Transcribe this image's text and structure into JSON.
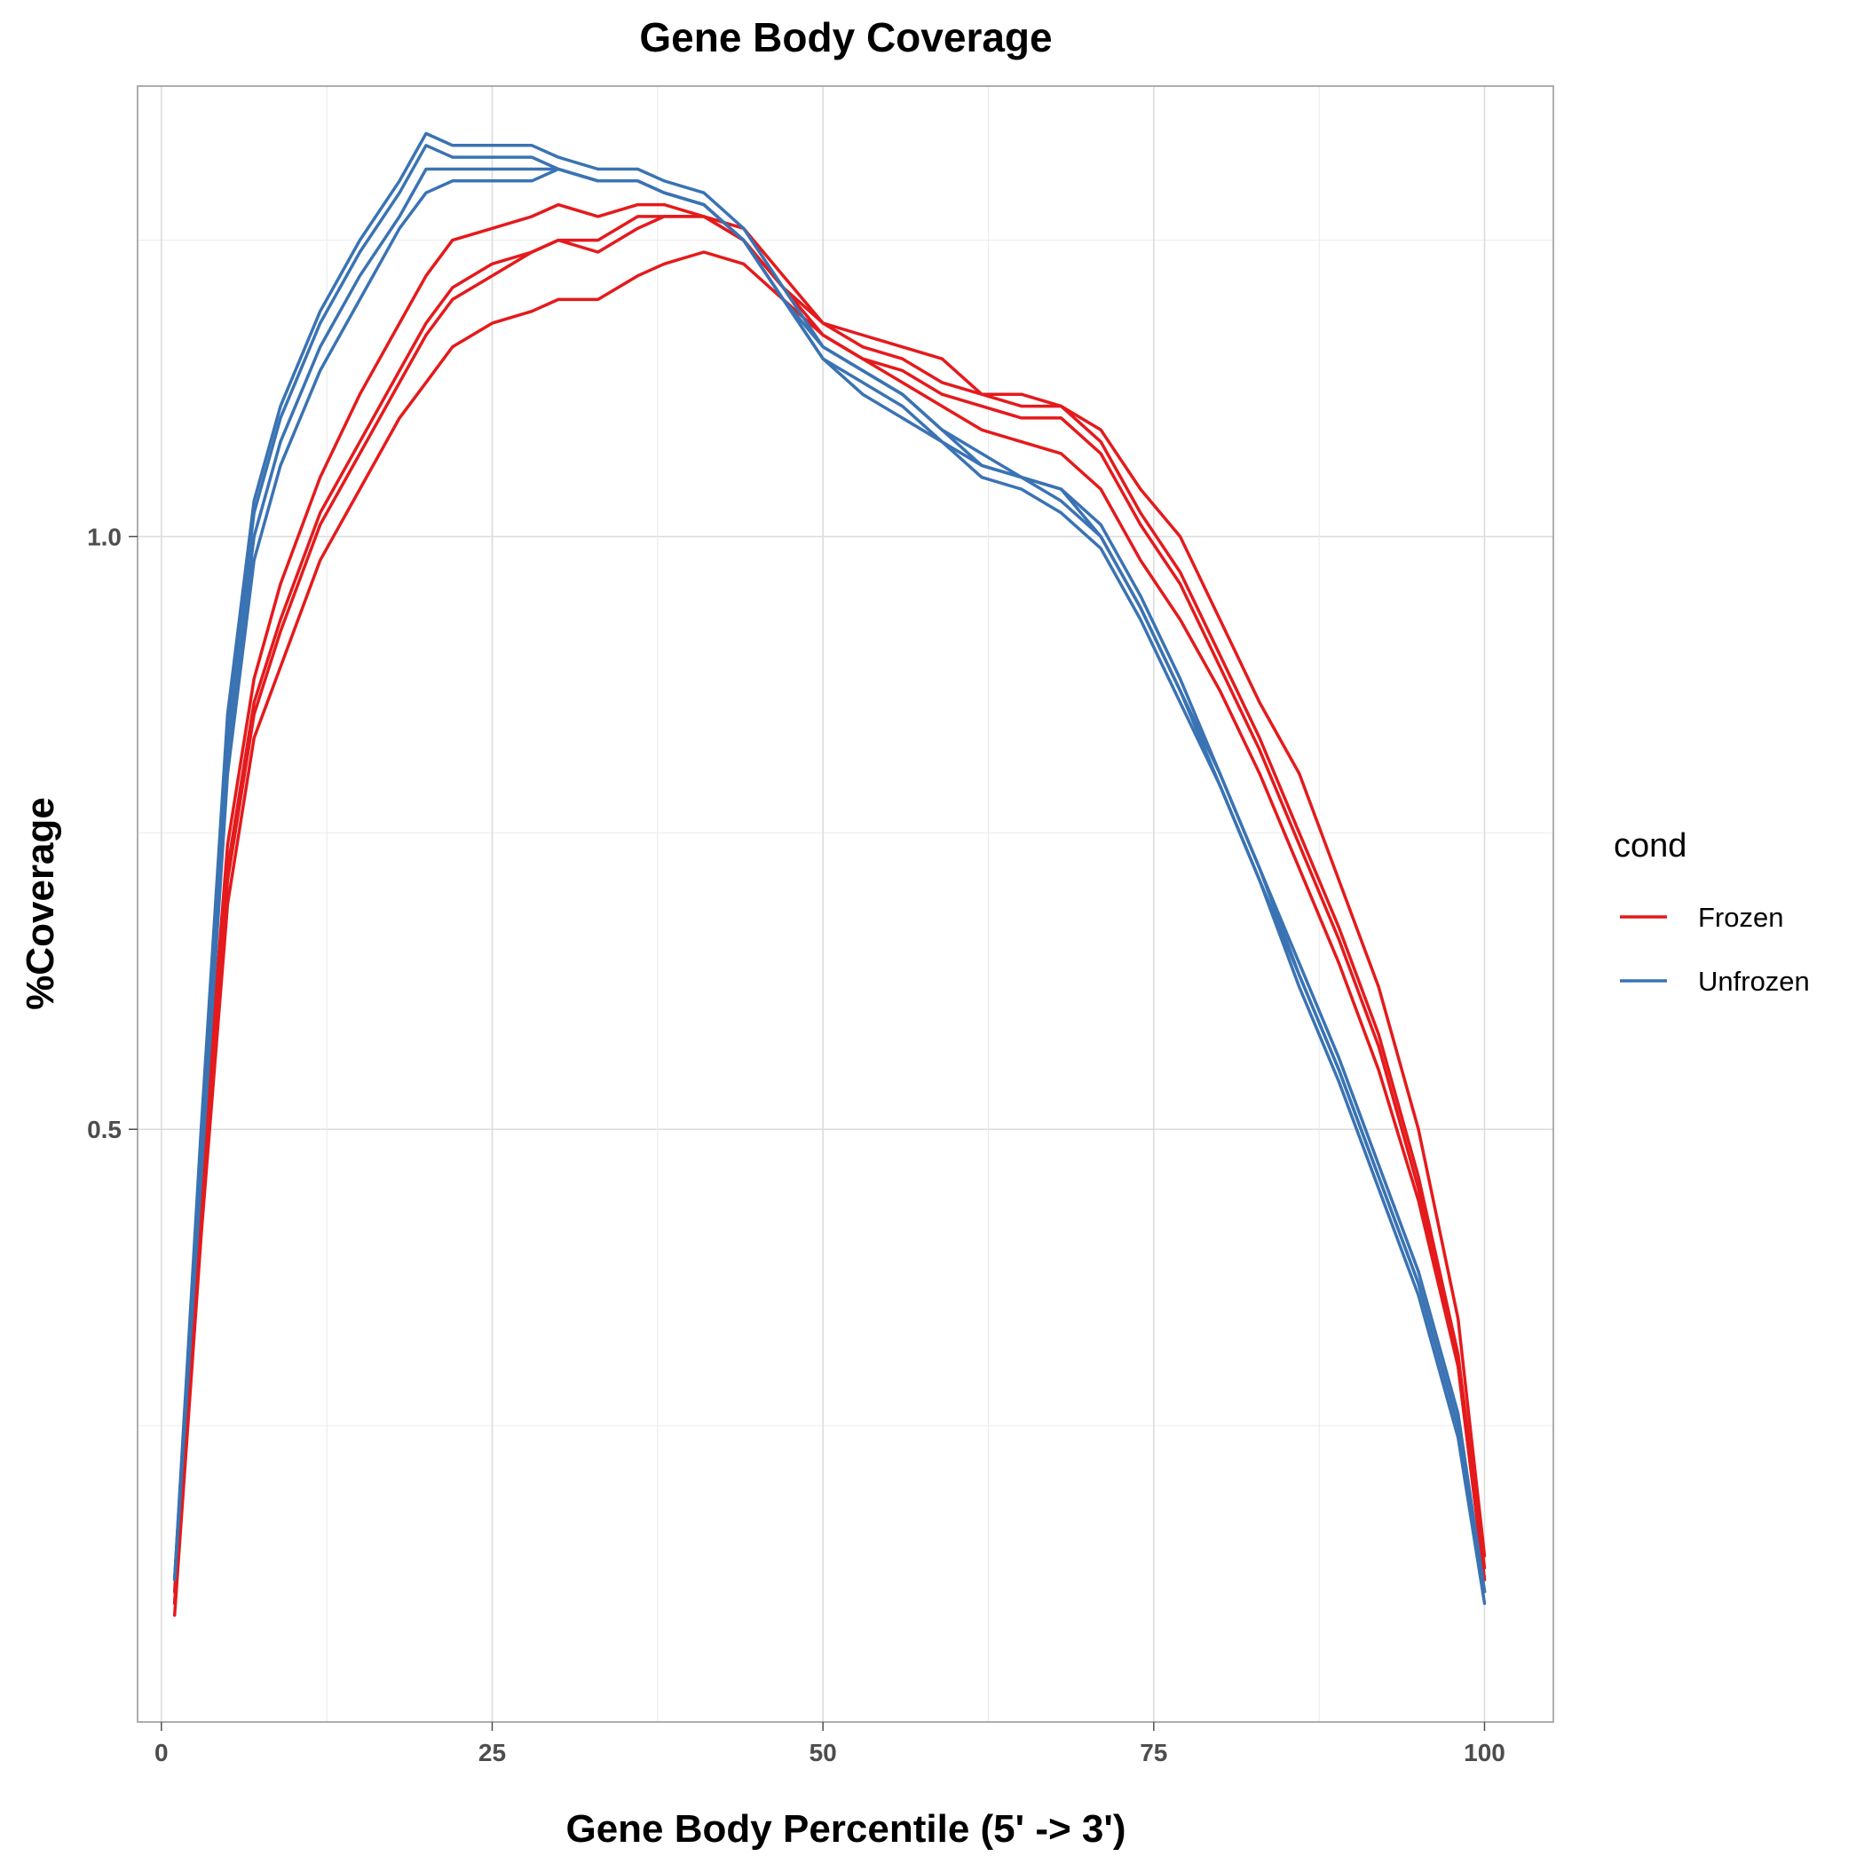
{
  "chart_data": {
    "type": "line",
    "title": "Gene Body Coverage",
    "xlabel": "Gene Body Percentile (5' -> 3')",
    "ylabel": "%Coverage",
    "xlim": [
      -1.8,
      105.2
    ],
    "ylim": [
      0.0,
      1.38
    ],
    "x_ticks": [
      0,
      25,
      50,
      75,
      100
    ],
    "x_tick_labels": [
      "0",
      "25",
      "50",
      "75",
      "100"
    ],
    "y_ticks": [
      0.5,
      1.0
    ],
    "y_tick_labels": [
      "0.5",
      "1.0"
    ],
    "y_minor_ticks": [
      0.25,
      0.75,
      1.25
    ],
    "grid": true,
    "legend": {
      "title": "cond",
      "position": "right",
      "entries": [
        {
          "label": "Frozen",
          "color": "#e41a1c"
        },
        {
          "label": "Unfrozen",
          "color": "#3a73b3"
        }
      ]
    },
    "x_anchors": [
      1,
      3,
      5,
      7,
      9,
      12,
      15,
      18,
      20,
      22,
      25,
      28,
      30,
      33,
      36,
      38,
      41,
      44,
      47,
      50,
      53,
      56,
      59,
      62,
      65,
      68,
      71,
      74,
      77,
      80,
      83,
      86,
      89,
      92,
      95,
      98,
      100
    ],
    "series": [
      {
        "name": "Frozen",
        "group": "Frozen",
        "color": "#e41a1c",
        "values": [
          0.11,
          0.46,
          0.74,
          0.88,
          0.96,
          1.05,
          1.12,
          1.18,
          1.22,
          1.25,
          1.26,
          1.27,
          1.28,
          1.27,
          1.28,
          1.28,
          1.27,
          1.26,
          1.22,
          1.18,
          1.17,
          1.16,
          1.15,
          1.12,
          1.12,
          1.11,
          1.09,
          1.04,
          1.0,
          0.93,
          0.86,
          0.8,
          0.71,
          0.62,
          0.5,
          0.34,
          0.14
        ]
      },
      {
        "name": "Frozen",
        "group": "Frozen",
        "color": "#e41a1c",
        "values": [
          0.1,
          0.44,
          0.72,
          0.86,
          0.93,
          1.02,
          1.08,
          1.14,
          1.18,
          1.21,
          1.23,
          1.24,
          1.25,
          1.25,
          1.27,
          1.27,
          1.27,
          1.25,
          1.21,
          1.18,
          1.16,
          1.15,
          1.13,
          1.12,
          1.11,
          1.11,
          1.08,
          1.02,
          0.97,
          0.9,
          0.83,
          0.75,
          0.67,
          0.58,
          0.46,
          0.31,
          0.13
        ]
      },
      {
        "name": "Frozen",
        "group": "Frozen",
        "color": "#e41a1c",
        "values": [
          0.1,
          0.43,
          0.71,
          0.85,
          0.92,
          1.01,
          1.07,
          1.13,
          1.17,
          1.2,
          1.22,
          1.24,
          1.25,
          1.24,
          1.26,
          1.27,
          1.27,
          1.25,
          1.21,
          1.17,
          1.15,
          1.14,
          1.12,
          1.11,
          1.1,
          1.1,
          1.07,
          1.01,
          0.96,
          0.89,
          0.82,
          0.74,
          0.66,
          0.57,
          0.45,
          0.3,
          0.12
        ]
      },
      {
        "name": "Frozen",
        "group": "Frozen",
        "color": "#e41a1c",
        "values": [
          0.09,
          0.41,
          0.69,
          0.83,
          0.89,
          0.98,
          1.04,
          1.1,
          1.13,
          1.16,
          1.18,
          1.19,
          1.2,
          1.2,
          1.22,
          1.23,
          1.24,
          1.23,
          1.2,
          1.17,
          1.15,
          1.13,
          1.11,
          1.09,
          1.08,
          1.07,
          1.04,
          0.98,
          0.93,
          0.87,
          0.8,
          0.72,
          0.64,
          0.55,
          0.44,
          0.3,
          0.12
        ]
      },
      {
        "name": "Unfrozen",
        "group": "Unfrozen",
        "color": "#3a73b3",
        "values": [
          0.12,
          0.5,
          0.85,
          1.03,
          1.11,
          1.19,
          1.25,
          1.3,
          1.34,
          1.33,
          1.33,
          1.33,
          1.32,
          1.31,
          1.31,
          1.3,
          1.29,
          1.26,
          1.21,
          1.16,
          1.14,
          1.12,
          1.09,
          1.07,
          1.05,
          1.04,
          1.01,
          0.95,
          0.88,
          0.8,
          0.72,
          0.64,
          0.56,
          0.47,
          0.38,
          0.26,
          0.11
        ]
      },
      {
        "name": "Unfrozen",
        "group": "Unfrozen",
        "color": "#3a73b3",
        "values": [
          0.12,
          0.49,
          0.84,
          1.02,
          1.1,
          1.18,
          1.24,
          1.29,
          1.33,
          1.32,
          1.32,
          1.32,
          1.31,
          1.3,
          1.3,
          1.29,
          1.28,
          1.25,
          1.2,
          1.16,
          1.14,
          1.12,
          1.09,
          1.06,
          1.05,
          1.04,
          1.0,
          0.94,
          0.87,
          0.79,
          0.71,
          0.63,
          0.55,
          0.46,
          0.37,
          0.25,
          0.11
        ]
      },
      {
        "name": "Unfrozen",
        "group": "Unfrozen",
        "color": "#3a73b3",
        "values": [
          0.12,
          0.47,
          0.82,
          1.0,
          1.08,
          1.16,
          1.22,
          1.27,
          1.31,
          1.31,
          1.31,
          1.31,
          1.31,
          1.3,
          1.3,
          1.29,
          1.28,
          1.25,
          1.2,
          1.15,
          1.13,
          1.11,
          1.08,
          1.06,
          1.05,
          1.03,
          1.0,
          0.94,
          0.87,
          0.8,
          0.72,
          0.63,
          0.55,
          0.46,
          0.37,
          0.25,
          0.11
        ]
      },
      {
        "name": "Unfrozen",
        "group": "Unfrozen",
        "color": "#3a73b3",
        "values": [
          0.12,
          0.46,
          0.8,
          0.98,
          1.06,
          1.14,
          1.2,
          1.26,
          1.29,
          1.3,
          1.3,
          1.3,
          1.31,
          1.3,
          1.3,
          1.29,
          1.28,
          1.25,
          1.2,
          1.15,
          1.12,
          1.1,
          1.08,
          1.05,
          1.04,
          1.02,
          0.99,
          0.93,
          0.86,
          0.79,
          0.71,
          0.62,
          0.54,
          0.45,
          0.36,
          0.24,
          0.1
        ]
      }
    ]
  }
}
